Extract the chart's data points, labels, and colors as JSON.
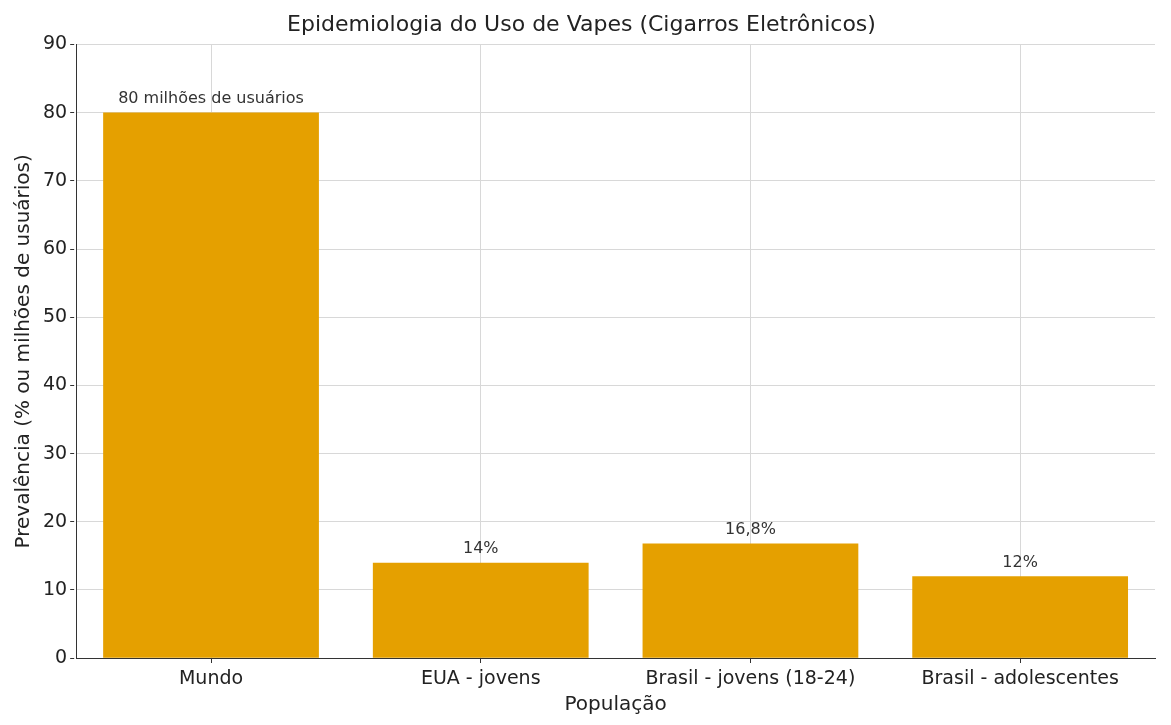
{
  "chart_data": {
    "type": "bar",
    "title": "Epidemiologia do Uso de Vapes (Cigarros Eletrônicos)",
    "xlabel": "População",
    "ylabel": "Prevalência (% ou milhões de usuários)",
    "categories": [
      "Mundo",
      "EUA - jovens",
      "Brasil - jovens (18-24)",
      "Brasil - adolescentes"
    ],
    "values": [
      80,
      14,
      16.8,
      12
    ],
    "value_labels": [
      "80 milhões de usuários",
      "14%",
      "16,8%",
      "12%"
    ],
    "color": "#e5a000",
    "ylim": [
      0,
      90
    ],
    "yticks": [
      0,
      10,
      20,
      30,
      40,
      50,
      60,
      70,
      80,
      90
    ],
    "grid": true,
    "legend": false
  }
}
